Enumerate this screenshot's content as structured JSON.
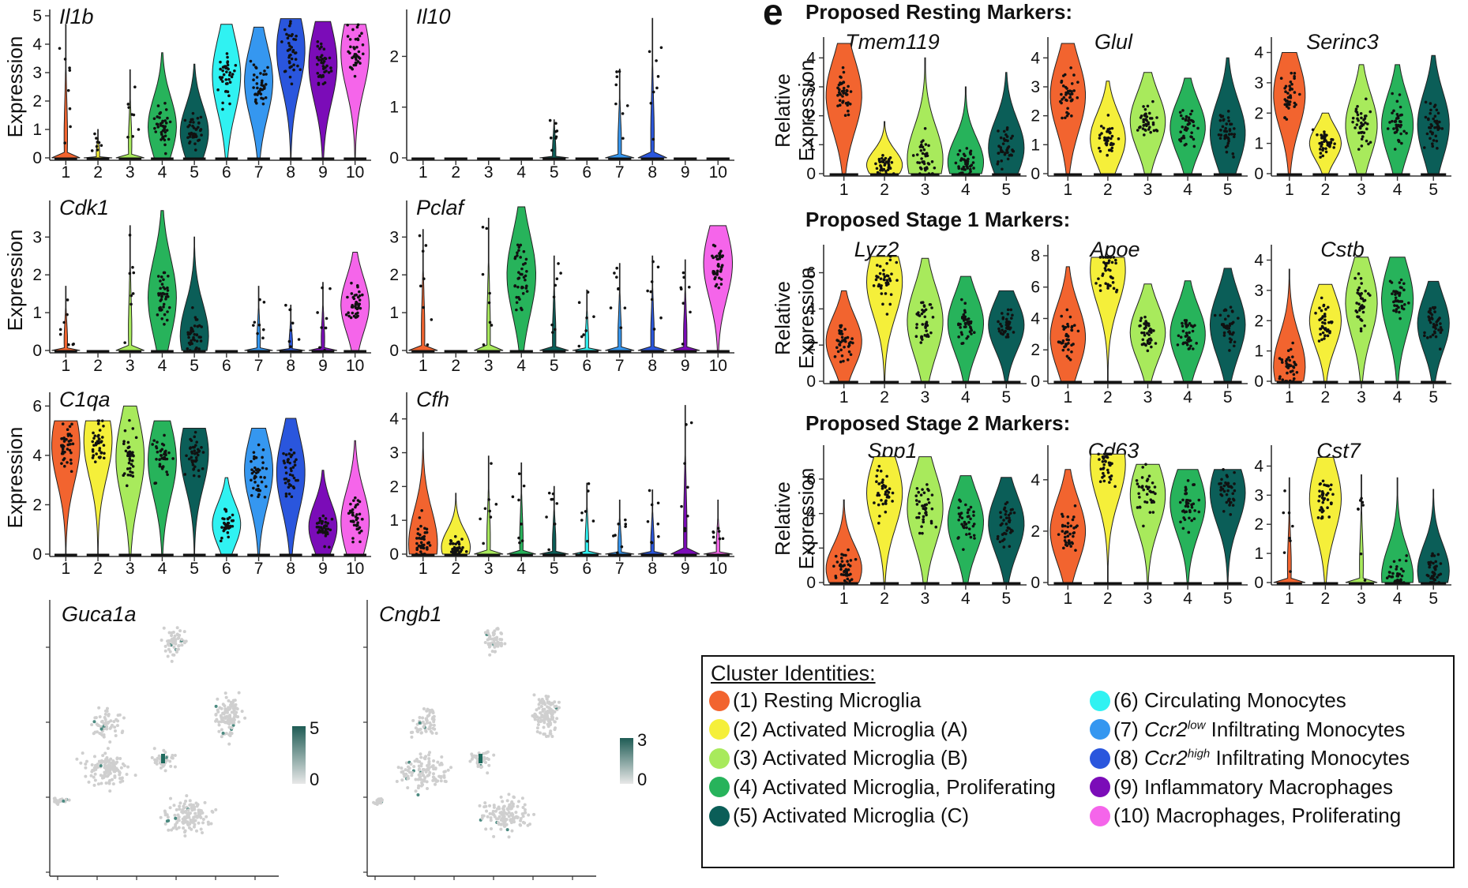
{
  "clusters": {
    "1": {
      "color": "#f2642f",
      "label": "(1) Resting Microglia"
    },
    "2": {
      "color": "#f5ef3a",
      "label": "(2) Activated Microglia (A)"
    },
    "3": {
      "color": "#a8ea5c",
      "label": "(3) Activated Microglia (B)"
    },
    "4": {
      "color": "#27b35b",
      "label": "(4) Activated Microglia,  Proliferating"
    },
    "5": {
      "color": "#0b5e58",
      "label": "(5) Activated Microglia (C)"
    },
    "6": {
      "color": "#30f2f2",
      "label": "(6) Circulating Monocytes"
    },
    "7": {
      "color": "#3597f0",
      "label_parts": [
        "(7) ",
        "Ccr2",
        "low",
        " Infiltrating Monocytes"
      ]
    },
    "8": {
      "color": "#2a56dd",
      "label_parts": [
        "(8) ",
        "Ccr2",
        "high",
        " Infiltrating Monocytes"
      ]
    },
    "9": {
      "color": "#7b0cb8",
      "label": "(9) Inflammatory Macrophages"
    },
    "10": {
      "color": "#f565ea",
      "label": "(10) Macrophages, Proliferating"
    }
  },
  "panel_letter": "e",
  "legend": {
    "title": "Cluster Identities:"
  },
  "chart_data": [
    {
      "type": "violin",
      "title": "Il1b",
      "ylabel": "Expression",
      "ylim": [
        0,
        5
      ],
      "yticks": [
        0,
        1,
        2,
        3,
        4,
        5
      ],
      "categories": [
        "1",
        "2",
        "3",
        "4",
        "5",
        "6",
        "7",
        "8",
        "9",
        "10"
      ],
      "medians": [
        0,
        0,
        0,
        1.1,
        0.9,
        2.9,
        2.7,
        3.8,
        3.3,
        3.7
      ],
      "max": [
        4.7,
        1.0,
        3.1,
        3.7,
        3.3,
        4.7,
        4.6,
        4.9,
        4.8,
        4.7
      ]
    },
    {
      "type": "violin",
      "title": "Il10",
      "ylabel": "",
      "ylim": [
        0,
        2.8
      ],
      "yticks": [
        0,
        1,
        2
      ],
      "categories": [
        "1",
        "2",
        "3",
        "4",
        "5",
        "6",
        "7",
        "8",
        "9",
        "10"
      ],
      "medians": [
        0,
        0,
        0,
        0,
        0,
        0,
        0,
        0,
        0,
        0
      ],
      "max": [
        0,
        0,
        0,
        0,
        0.75,
        0,
        1.75,
        2.75,
        0,
        0
      ]
    },
    {
      "type": "violin",
      "title": "Cdk1",
      "ylabel": "Expression",
      "ylim": [
        0,
        3.8
      ],
      "yticks": [
        0,
        1,
        2,
        3
      ],
      "categories": [
        "1",
        "2",
        "3",
        "4",
        "5",
        "6",
        "7",
        "8",
        "9",
        "10"
      ],
      "medians": [
        0,
        0,
        0,
        1.4,
        0.4,
        0,
        0,
        0,
        0,
        1.2
      ],
      "max": [
        1.7,
        0,
        3.3,
        3.7,
        3.0,
        0,
        1.7,
        1.2,
        1.8,
        2.6
      ]
    },
    {
      "type": "violin",
      "title": "Pclaf",
      "ylabel": "",
      "ylim": [
        0,
        3.8
      ],
      "yticks": [
        0,
        1,
        2,
        3
      ],
      "categories": [
        "1",
        "2",
        "3",
        "4",
        "5",
        "6",
        "7",
        "8",
        "9",
        "10"
      ],
      "medians": [
        0,
        0,
        0,
        2.0,
        0,
        0,
        0,
        0,
        0,
        2.3
      ],
      "max": [
        3.2,
        0,
        3.5,
        3.8,
        2.5,
        1.6,
        2.3,
        2.5,
        2.4,
        3.3
      ]
    },
    {
      "type": "violin",
      "title": "C1qa",
      "ylabel": "Expression",
      "ylim": [
        0,
        6.3
      ],
      "yticks": [
        0,
        2,
        4,
        6
      ],
      "categories": [
        "1",
        "2",
        "3",
        "4",
        "5",
        "6",
        "7",
        "8",
        "9",
        "10"
      ],
      "medians": [
        4.4,
        4.6,
        3.9,
        3.8,
        4.1,
        1.2,
        3.4,
        3.3,
        1.1,
        1.3
      ],
      "max": [
        5.4,
        5.4,
        6.0,
        5.4,
        5.1,
        3.1,
        5.1,
        5.5,
        3.4,
        4.6
      ]
    },
    {
      "type": "violin",
      "title": "Cfh",
      "ylabel": "",
      "ylim": [
        0,
        4.6
      ],
      "yticks": [
        0,
        1,
        2,
        3,
        4
      ],
      "categories": [
        "1",
        "2",
        "3",
        "4",
        "5",
        "6",
        "7",
        "8",
        "9",
        "10"
      ],
      "medians": [
        0.3,
        0.2,
        0,
        0,
        0,
        0,
        0,
        0,
        0,
        0
      ],
      "max": [
        3.6,
        1.8,
        2.9,
        2.7,
        2.0,
        2.1,
        1.6,
        1.9,
        4.4,
        1.6
      ]
    },
    {
      "type": "violin",
      "title": "Tmem119",
      "ylabel": "Relative Expression",
      "ylim": [
        0,
        4.5
      ],
      "yticks": [
        0,
        1,
        2,
        3,
        4
      ],
      "categories": [
        "1",
        "2",
        "3",
        "4",
        "5"
      ],
      "medians": [
        2.7,
        0.3,
        0.5,
        0.4,
        0.9
      ],
      "max": [
        4.5,
        1.8,
        4.0,
        3.0,
        3.5
      ]
    },
    {
      "type": "violin",
      "title": "Glul",
      "ylabel": "",
      "ylim": [
        0,
        4.5
      ],
      "yticks": [
        0,
        1,
        2,
        3,
        4
      ],
      "categories": [
        "1",
        "2",
        "3",
        "4",
        "5"
      ],
      "medians": [
        2.7,
        1.2,
        1.8,
        1.6,
        1.4
      ],
      "max": [
        4.5,
        3.2,
        3.5,
        3.3,
        4.0
      ]
    },
    {
      "type": "violin",
      "title": "Serinc3",
      "ylabel": "",
      "ylim": [
        0,
        4.3
      ],
      "yticks": [
        0,
        1,
        2,
        3,
        4
      ],
      "categories": [
        "1",
        "2",
        "3",
        "4",
        "5"
      ],
      "medians": [
        2.6,
        1.0,
        1.6,
        1.6,
        1.6
      ],
      "max": [
        4.0,
        2.0,
        3.6,
        3.6,
        3.9
      ]
    },
    {
      "type": "violin",
      "title": "Lyz2",
      "ylabel": "Relative Expression",
      "ylim": [
        0,
        7.2
      ],
      "yticks": [
        0,
        2,
        4,
        6
      ],
      "categories": [
        "1",
        "2",
        "3",
        "4",
        "5"
      ],
      "medians": [
        2.2,
        5.5,
        3.3,
        3.2,
        3.1
      ],
      "max": [
        5.0,
        6.9,
        6.8,
        5.8,
        5.0
      ]
    },
    {
      "type": "violin",
      "title": "Apoe",
      "ylabel": "",
      "ylim": [
        0,
        8.3
      ],
      "yticks": [
        0,
        2,
        4,
        6,
        8
      ],
      "categories": [
        "1",
        "2",
        "3",
        "4",
        "5"
      ],
      "medians": [
        2.8,
        7.1,
        3.1,
        3.0,
        3.6
      ],
      "max": [
        7.3,
        7.9,
        6.2,
        6.4,
        7.2
      ]
    },
    {
      "type": "violin",
      "title": "Cstb",
      "ylabel": "",
      "ylim": [
        0,
        4.3
      ],
      "yticks": [
        0,
        1,
        2,
        3,
        4
      ],
      "categories": [
        "1",
        "2",
        "3",
        "4",
        "5"
      ],
      "medians": [
        0.5,
        2.0,
        2.6,
        2.7,
        1.9
      ],
      "max": [
        3.7,
        3.2,
        4.1,
        4.1,
        3.3
      ]
    },
    {
      "type": "violin",
      "title": "Spp1",
      "ylabel": "Relative Expression",
      "ylim": [
        0,
        7.6
      ],
      "yticks": [
        0,
        2,
        4,
        6
      ],
      "categories": [
        "1",
        "2",
        "3",
        "4",
        "5"
      ],
      "medians": [
        0.8,
        5.2,
        4.3,
        3.5,
        3.4
      ],
      "max": [
        4.8,
        7.3,
        7.3,
        6.2,
        6.1
      ]
    },
    {
      "type": "violin",
      "title": "Cd63",
      "ylabel": "",
      "ylim": [
        0,
        5.1
      ],
      "yticks": [
        0,
        2,
        4
      ],
      "categories": [
        "1",
        "2",
        "3",
        "4",
        "5"
      ],
      "medians": [
        2.0,
        4.6,
        3.4,
        3.1,
        3.5
      ],
      "max": [
        4.4,
        5.0,
        4.6,
        4.4,
        4.4
      ]
    },
    {
      "type": "violin",
      "title": "Cst7",
      "ylabel": "",
      "ylim": [
        0,
        4.5
      ],
      "yticks": [
        0,
        1,
        2,
        3,
        4
      ],
      "categories": [
        "1",
        "2",
        "3",
        "4",
        "5"
      ],
      "medians": [
        0,
        2.9,
        0,
        0.2,
        0.4
      ],
      "max": [
        3.6,
        4.3,
        3.7,
        3.6,
        3.2
      ]
    },
    {
      "type": "scatter",
      "title": "Guca1a",
      "colorbar": [
        0,
        5
      ]
    },
    {
      "type": "scatter",
      "title": "Cngb1",
      "colorbar": [
        0,
        3
      ]
    }
  ],
  "section_titles": [
    "Proposed Resting Markers:",
    "Proposed Stage 1 Markers:",
    "Proposed Stage 2 Markers:"
  ]
}
